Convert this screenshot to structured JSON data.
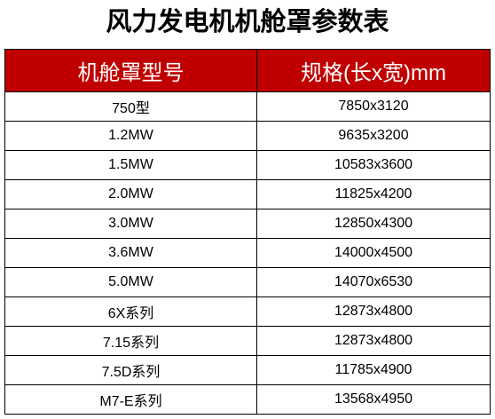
{
  "title": "风力发电机机舱罩参数表",
  "table": {
    "header": [
      "机舱罩型号",
      "规格(长x宽)mm"
    ],
    "rows": [
      [
        "750型",
        "7850x3120"
      ],
      [
        "1.2MW",
        "9635x3200"
      ],
      [
        "1.5MW",
        "10583x3600"
      ],
      [
        "2.0MW",
        "11825x4200"
      ],
      [
        "3.0MW",
        "12850x4300"
      ],
      [
        "3.6MW",
        "14000x4500"
      ],
      [
        "5.0MW",
        "14070x6530"
      ],
      [
        "6X系列",
        "12873x4800"
      ],
      [
        "7.15系列",
        "12873x4800"
      ],
      [
        "7.5D系列",
        "11785x4900"
      ],
      [
        "M7-E系列",
        "13568x4950"
      ]
    ]
  }
}
